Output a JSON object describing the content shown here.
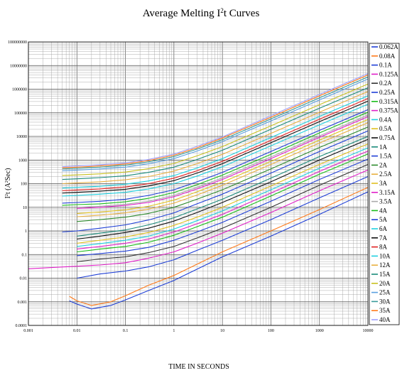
{
  "chart_data": {
    "type": "line",
    "title_parts": [
      "Average Melting I",
      "2",
      "t  Curves"
    ],
    "xlabel": "TIME IN SECONDS",
    "ylabel_parts": [
      "I",
      "2",
      "t (A",
      "2",
      "Sec)"
    ],
    "x_scale": "log",
    "y_scale": "log",
    "xlim": [
      0.001,
      10000
    ],
    "ylim": [
      0.0001,
      100000000
    ],
    "x_ticks": [
      "0.001",
      "0.01",
      "0.1",
      "1",
      "10",
      "100",
      "1000",
      "10000"
    ],
    "y_ticks": [
      "0.0001",
      "0.001",
      "0.01",
      "0.1",
      "1",
      "10",
      "100",
      "1000",
      "10000",
      "100000",
      "1000000",
      "10000000",
      "100000000"
    ],
    "grid": true,
    "legend_position": "right",
    "series": [
      {
        "name": "0.062A",
        "color": "#1f3fd6",
        "x": [
          0.007,
          0.01,
          0.02,
          0.05,
          0.1,
          0.3,
          1,
          10,
          100,
          1000,
          10000
        ],
        "y": [
          0.0011,
          0.0008,
          0.0005,
          0.0007,
          0.0012,
          0.003,
          0.008,
          0.08,
          0.6,
          5,
          45
        ]
      },
      {
        "name": "0.08A",
        "color": "#ff7a1a",
        "x": [
          0.007,
          0.01,
          0.02,
          0.05,
          0.1,
          0.3,
          1,
          10,
          100,
          1000,
          10000
        ],
        "y": [
          0.0017,
          0.0011,
          0.0007,
          0.001,
          0.0018,
          0.005,
          0.013,
          0.13,
          1,
          8,
          70
        ]
      },
      {
        "name": "0.1A",
        "color": "#1f3fd6",
        "x": [
          0.01,
          0.03,
          0.1,
          0.3,
          1,
          3,
          10,
          100,
          1000,
          10000
        ],
        "y": [
          0.01,
          0.015,
          0.02,
          0.03,
          0.06,
          0.15,
          0.4,
          3,
          25,
          200
        ]
      },
      {
        "name": "0.125A",
        "color": "#e020c8",
        "x": [
          0.001,
          0.003,
          0.01,
          0.03,
          0.1,
          0.3,
          1,
          3,
          10,
          100,
          1000,
          10000
        ],
        "y": [
          0.025,
          0.028,
          0.032,
          0.036,
          0.045,
          0.07,
          0.13,
          0.3,
          0.8,
          6,
          50,
          380
        ]
      },
      {
        "name": "0.2A",
        "color": "#333333",
        "x": [
          0.01,
          0.03,
          0.1,
          0.3,
          1,
          3,
          10,
          100,
          1000,
          10000
        ],
        "y": [
          0.05,
          0.065,
          0.08,
          0.12,
          0.22,
          0.5,
          1.3,
          10,
          85,
          650
        ]
      },
      {
        "name": "0.25A",
        "color": "#1f3fd6",
        "x": [
          0.01,
          0.03,
          0.1,
          0.3,
          1,
          3,
          10,
          100,
          1000,
          10000
        ],
        "y": [
          0.09,
          0.11,
          0.14,
          0.2,
          0.4,
          0.9,
          2.3,
          18,
          150,
          1100
        ]
      },
      {
        "name": "0.315A",
        "color": "#1abc1a",
        "x": [
          0.01,
          0.03,
          0.1,
          0.3,
          1,
          3,
          10,
          100,
          1000,
          10000
        ],
        "y": [
          0.13,
          0.17,
          0.22,
          0.33,
          0.65,
          1.5,
          3.8,
          30,
          250,
          1800
        ]
      },
      {
        "name": "0.375A",
        "color": "#e020c8",
        "x": [
          0.01,
          0.03,
          0.1,
          0.3,
          1,
          3,
          10,
          100,
          1000,
          10000
        ],
        "y": [
          0.17,
          0.22,
          0.3,
          0.45,
          0.9,
          2,
          5,
          40,
          330,
          2400
        ]
      },
      {
        "name": "0.4A",
        "color": "#1fd0e0",
        "x": [
          0.01,
          0.03,
          0.1,
          0.3,
          1,
          3,
          10,
          100,
          1000,
          10000
        ],
        "y": [
          0.22,
          0.29,
          0.4,
          0.6,
          1.2,
          2.7,
          7,
          55,
          450,
          3300
        ]
      },
      {
        "name": "0.5A",
        "color": "#e0c020",
        "x": [
          0.01,
          0.03,
          0.1,
          0.3,
          1,
          3,
          10,
          100,
          1000,
          10000
        ],
        "y": [
          0.3,
          0.4,
          0.55,
          0.85,
          1.7,
          3.8,
          10,
          80,
          650,
          4800
        ]
      },
      {
        "name": "0.75A",
        "color": "#111111",
        "x": [
          0.01,
          0.03,
          0.1,
          0.3,
          1,
          3,
          10,
          100,
          1000,
          10000
        ],
        "y": [
          0.45,
          0.6,
          0.85,
          1.3,
          2.6,
          6,
          16,
          120,
          1000,
          7500
        ]
      },
      {
        "name": "1A",
        "color": "#1a8a7a",
        "x": [
          0.01,
          0.03,
          0.1,
          0.3,
          1,
          3,
          10,
          100,
          1000,
          10000
        ],
        "y": [
          0.6,
          0.8,
          1.1,
          1.8,
          3.6,
          8.5,
          22,
          170,
          1400,
          10000
        ]
      },
      {
        "name": "1.5A",
        "color": "#1f3fd6",
        "x": [
          0.005,
          0.01,
          0.03,
          0.1,
          0.3,
          1,
          3,
          10,
          100,
          1000,
          10000
        ],
        "y": [
          0.9,
          1,
          1.3,
          1.8,
          2.9,
          5.8,
          14,
          36,
          280,
          2300,
          17000
        ]
      },
      {
        "name": "2A",
        "color": "#2e8b2e",
        "x": [
          0.01,
          0.03,
          0.1,
          0.3,
          1,
          3,
          10,
          100,
          1000,
          10000
        ],
        "y": [
          2.5,
          3,
          3.8,
          5.5,
          10,
          22,
          55,
          420,
          3400,
          25000
        ]
      },
      {
        "name": "2.5A",
        "color": "#e8b040",
        "x": [
          0.01,
          0.03,
          0.1,
          0.3,
          1,
          3,
          10,
          100,
          1000,
          10000
        ],
        "y": [
          4,
          4.6,
          5.8,
          8.3,
          15,
          33,
          85,
          650,
          5200,
          38000
        ]
      },
      {
        "name": "3A",
        "color": "#e0c020",
        "x": [
          0.01,
          0.03,
          0.1,
          0.3,
          1,
          3,
          10,
          100,
          1000,
          10000
        ],
        "y": [
          5.5,
          6.3,
          7.8,
          11,
          20,
          45,
          115,
          880,
          7000,
          52000
        ]
      },
      {
        "name": "3.15A",
        "color": "#e020c8",
        "x": [
          0.01,
          0.03,
          0.1,
          0.3,
          1,
          3,
          10,
          100,
          1000,
          10000
        ],
        "y": [
          9,
          10,
          12,
          16,
          28,
          60,
          150,
          1150,
          9200,
          68000
        ]
      },
      {
        "name": "3.5A",
        "color": "#aaaaaa",
        "x": [
          0.01,
          0.03,
          0.1,
          0.3,
          1,
          3,
          10,
          100,
          1000,
          10000
        ],
        "y": [
          10,
          11,
          13.5,
          18,
          32,
          70,
          175,
          1350,
          10500,
          80000
        ]
      },
      {
        "name": "4A",
        "color": "#1abc1a",
        "x": [
          0.005,
          0.01,
          0.03,
          0.1,
          0.3,
          1,
          3,
          10,
          100,
          1000,
          10000
        ],
        "y": [
          12,
          13,
          14,
          17,
          24,
          42,
          90,
          230,
          1750,
          14000,
          105000
        ]
      },
      {
        "name": "5A",
        "color": "#1f3fd6",
        "x": [
          0.005,
          0.01,
          0.03,
          0.1,
          0.3,
          1,
          3,
          10,
          100,
          1000,
          10000
        ],
        "y": [
          15,
          16,
          18,
          22,
          32,
          55,
          120,
          300,
          2300,
          18000,
          135000
        ]
      },
      {
        "name": "6A",
        "color": "#1fd0e0",
        "x": [
          0.005,
          0.01,
          0.03,
          0.1,
          0.3,
          1,
          3,
          10,
          100,
          1000,
          10000
        ],
        "y": [
          30,
          32,
          36,
          43,
          60,
          100,
          210,
          520,
          4000,
          31000,
          230000
        ]
      },
      {
        "name": "7A",
        "color": "#111111",
        "x": [
          0.005,
          0.01,
          0.03,
          0.1,
          0.3,
          1,
          3,
          10,
          100,
          1000,
          10000
        ],
        "y": [
          40,
          43,
          48,
          58,
          80,
          135,
          280,
          700,
          5400,
          42000,
          310000
        ]
      },
      {
        "name": "8A",
        "color": "#e02020",
        "x": [
          0.005,
          0.01,
          0.03,
          0.1,
          0.3,
          1,
          3,
          10,
          100,
          1000,
          10000
        ],
        "y": [
          50,
          54,
          60,
          72,
          100,
          170,
          350,
          880,
          6800,
          53000,
          400000
        ]
      },
      {
        "name": "10A",
        "color": "#1fd0e0",
        "x": [
          0.005,
          0.01,
          0.03,
          0.1,
          0.3,
          1,
          3,
          10,
          100,
          1000,
          10000
        ],
        "y": [
          65,
          70,
          78,
          95,
          130,
          220,
          460,
          1150,
          9000,
          70000,
          520000
        ]
      },
      {
        "name": "12A",
        "color": "#e8b040",
        "x": [
          0.005,
          0.01,
          0.03,
          0.1,
          0.3,
          1,
          3,
          10,
          100,
          1000,
          10000
        ],
        "y": [
          100,
          108,
          120,
          145,
          200,
          340,
          700,
          1750,
          13500,
          105000,
          800000
        ]
      },
      {
        "name": "15A",
        "color": "#1a8a7a",
        "x": [
          0.005,
          0.01,
          0.03,
          0.1,
          0.3,
          1,
          3,
          10,
          100,
          1000,
          10000
        ],
        "y": [
          150,
          160,
          180,
          215,
          300,
          500,
          1050,
          2600,
          20000,
          155000,
          1150000
        ]
      },
      {
        "name": "20A",
        "color": "#c8c020",
        "x": [
          0.005,
          0.01,
          0.03,
          0.1,
          0.3,
          1,
          3,
          10,
          100,
          1000,
          10000
        ],
        "y": [
          220,
          235,
          260,
          310,
          430,
          720,
          1500,
          3700,
          28000,
          220000,
          1650000
        ]
      },
      {
        "name": "25A",
        "color": "#5aa0e0",
        "x": [
          0.005,
          0.01,
          0.03,
          0.1,
          0.3,
          1,
          3,
          10,
          100,
          1000,
          10000
        ],
        "y": [
          350,
          375,
          420,
          500,
          700,
          1150,
          2400,
          6000,
          45000,
          350000,
          2700000
        ]
      },
      {
        "name": "30A",
        "color": "#3a9a9a",
        "x": [
          0.005,
          0.01,
          0.03,
          0.1,
          0.3,
          1,
          3,
          10,
          100,
          1000,
          10000
        ],
        "y": [
          420,
          450,
          500,
          600,
          840,
          1400,
          2900,
          7200,
          55000,
          430000,
          3300000
        ]
      },
      {
        "name": "35A",
        "color": "#ff7a1a",
        "x": [
          0.005,
          0.01,
          0.03,
          0.1,
          0.3,
          1,
          3,
          10,
          100,
          1000,
          10000
        ],
        "y": [
          470,
          500,
          560,
          680,
          950,
          1600,
          3300,
          8500,
          65000,
          520000,
          4000000
        ]
      },
      {
        "name": "40A",
        "color": "#a0a0ff",
        "x": [
          0.005,
          0.01,
          0.03,
          0.1,
          0.3,
          1,
          3,
          10,
          100,
          1000,
          10000
        ],
        "y": [
          520,
          560,
          630,
          760,
          1060,
          1800,
          3800,
          9500,
          75000,
          600000,
          4600000
        ]
      }
    ]
  }
}
